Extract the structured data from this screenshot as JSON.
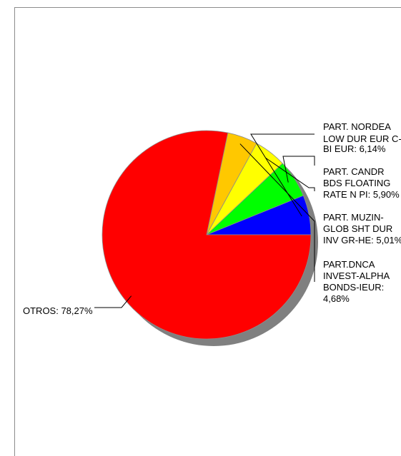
{
  "chart_data": {
    "type": "pie",
    "slices": [
      {
        "label_lines": [
          "PART. NORDEA",
          "LOW DUR EUR C-",
          "BI EUR: 6,14%"
        ],
        "value": 6.14,
        "color": "#0000ff"
      },
      {
        "label_lines": [
          "PART. CANDR",
          "BDS FLOATING",
          "RATE N PI: 5,90%"
        ],
        "value": 5.9,
        "color": "#00ff00"
      },
      {
        "label_lines": [
          "PART. MUZIN-",
          "GLOB SHT DUR",
          "INV GR-HE: 5,01%"
        ],
        "value": 5.01,
        "color": "#ffff00"
      },
      {
        "label_lines": [
          "PART.DNCA",
          "INVEST-ALPHA",
          "BONDS-IEUR:",
          "4,68%"
        ],
        "value": 4.68,
        "color": "#ffc800"
      },
      {
        "label_lines": [
          "OTROS: 78,27%"
        ],
        "value": 78.27,
        "color": "#ff0000"
      }
    ],
    "start": "3 o'clock",
    "direction": "counterclockwise",
    "shadow_color": "#808080",
    "legend": "none"
  }
}
